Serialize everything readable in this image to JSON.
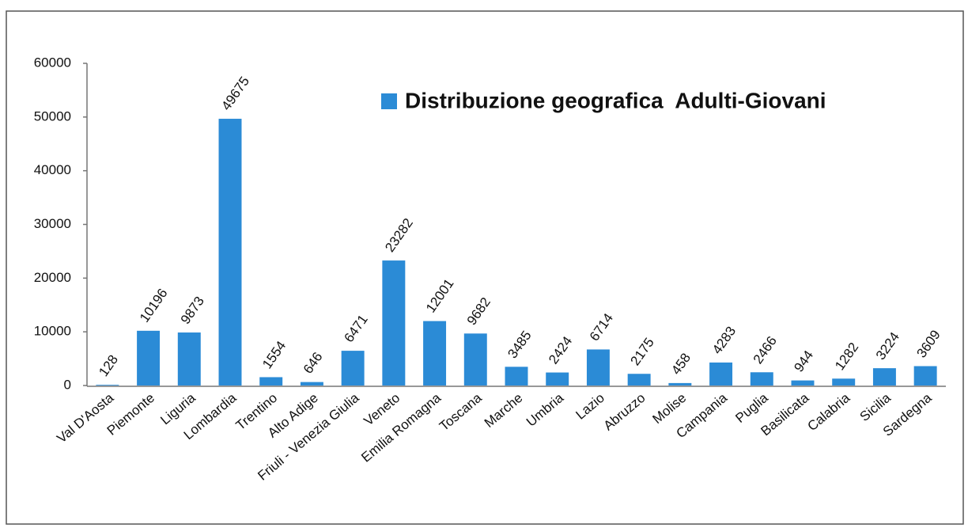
{
  "chart_data": {
    "type": "bar",
    "categories": [
      "Val D'Aosta",
      "Piemonte",
      "Liguria",
      "Lombardia",
      "Trentino",
      "Alto Adige",
      "Friuli - Venezia Giulia",
      "Veneto",
      "Emilia Romagna",
      "Toscana",
      "Marche",
      "Umbria",
      "Lazio",
      "Abruzzo",
      "Molise",
      "Campania",
      "Puglia",
      "Basilicata",
      "Calabria",
      "Sicilia",
      "Sardegna"
    ],
    "series": [
      {
        "name": "Distribuzione geografica  Adulti-Giovani",
        "color": "#2b8bd6",
        "values": [
          128,
          10196,
          9873,
          49675,
          1554,
          646,
          6471,
          23282,
          12001,
          9682,
          3485,
          2424,
          6714,
          2175,
          458,
          4283,
          2466,
          944,
          1282,
          3224,
          3609
        ]
      }
    ],
    "ylim": [
      0,
      60000
    ],
    "yticks": [
      0,
      10000,
      20000,
      30000,
      40000,
      50000,
      60000
    ],
    "grid": false,
    "legend": "top-right"
  }
}
